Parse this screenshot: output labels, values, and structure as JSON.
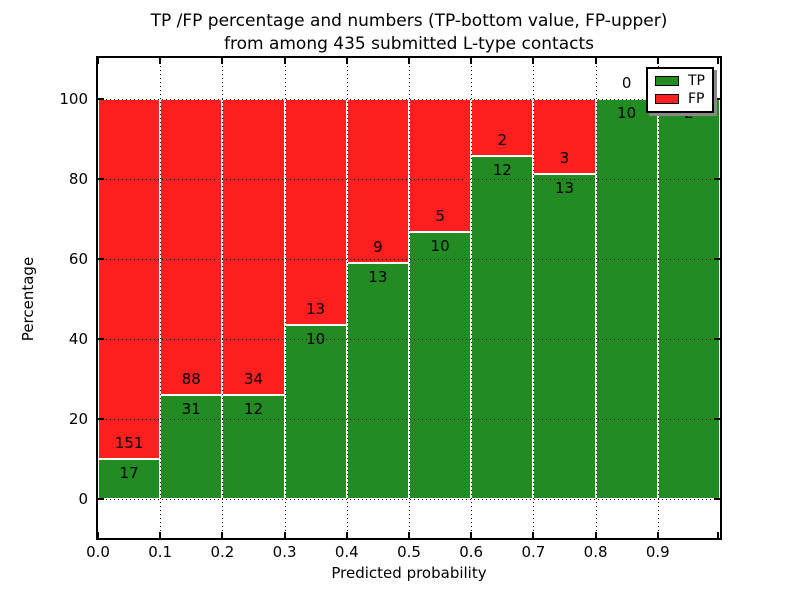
{
  "title": {
    "line1": "TP /FP percentage and numbers (TP-bottom value, FP-upper)",
    "line2": "from among 435 submitted L-type contacts"
  },
  "axes": {
    "xlabel": "Predicted probability",
    "ylabel": "Percentage",
    "x_tick_labels": [
      "0.0",
      "0.1",
      "0.2",
      "0.3",
      "0.4",
      "0.5",
      "0.6",
      "0.7",
      "0.8",
      "0.9"
    ],
    "y_tick_labels": [
      "0",
      "20",
      "40",
      "60",
      "80",
      "100"
    ],
    "y_tick_values": [
      0,
      20,
      40,
      60,
      80,
      100
    ],
    "xlim": [
      0.0,
      1.0
    ],
    "grid_style": "dotted"
  },
  "legend": {
    "position": "upper-right",
    "items": [
      {
        "label": "TP",
        "color": "#228b22"
      },
      {
        "label": "FP",
        "color": "#ff1f1f"
      }
    ]
  },
  "colors": {
    "tp": "#228b22",
    "fp": "#ff1f1f",
    "bar_edge": "#ffffff",
    "background": "#ffffff",
    "text": "#000000"
  },
  "chart_data": {
    "type": "bar",
    "subtype": "stacked-percentage",
    "title": "TP /FP percentage and numbers (TP-bottom value, FP-upper) from among 435 submitted L-type contacts",
    "xlabel": "Predicted probability",
    "ylabel": "Percentage",
    "total_contacts": 435,
    "bin_width": 0.1,
    "categories": [
      0.0,
      0.1,
      0.2,
      0.3,
      0.4,
      0.5,
      0.6,
      0.7,
      0.8,
      0.9
    ],
    "series": [
      {
        "name": "TP",
        "color": "#228b22",
        "values": [
          17,
          31,
          12,
          10,
          13,
          10,
          12,
          13,
          10,
          2
        ]
      },
      {
        "name": "FP",
        "color": "#ff1f1f",
        "values": [
          151,
          88,
          34,
          13,
          9,
          5,
          2,
          3,
          0,
          0
        ]
      }
    ],
    "tp_percent": [
      10.1,
      26.1,
      26.1,
      43.5,
      59.1,
      66.7,
      85.7,
      81.3,
      100.0,
      100.0
    ],
    "ylim_percent": [
      0,
      100
    ],
    "fp_label_hidden_for_last_bin": true,
    "legend_position": "upper-right",
    "grid": true
  }
}
